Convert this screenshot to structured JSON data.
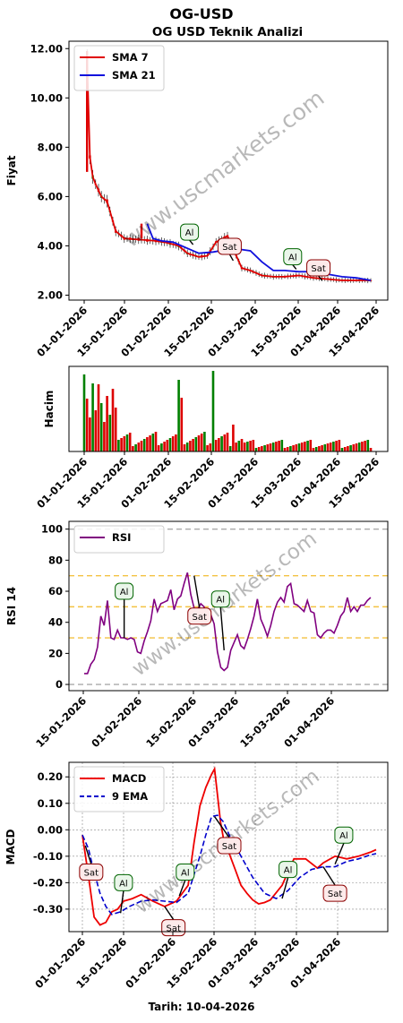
{
  "page": {
    "suptitle": "OG-USD",
    "footer": "Tarih: 10-04-2026",
    "watermark": "www.uscmarkets.com"
  },
  "colors": {
    "sma7": "#e00000",
    "sma21": "#1010dd",
    "candle_up": "#008000",
    "candle_down": "#dd0000",
    "rsi": "#800080",
    "macd": "#ee0000",
    "ema": "#0000cc",
    "buy_text": "#006400",
    "sell_text": "#8b0000"
  },
  "chart_data": [
    {
      "type": "line",
      "id": "price",
      "title": "OG USD Teknik Analizi",
      "ylabel": "Fiyat",
      "ylim": [
        1.8,
        12.3
      ],
      "yticks": [
        "2.00",
        "4.00",
        "6.00",
        "8.00",
        "10.00",
        "12.00"
      ],
      "ytick_values": [
        2,
        4,
        6,
        8,
        10,
        12
      ],
      "xticks": [
        "01-01-2026",
        "15-01-2026",
        "01-02-2026",
        "15-02-2026",
        "01-03-2026",
        "15-03-2026",
        "01-04-2026",
        "15-04-2026"
      ],
      "legend": [
        "SMA 7",
        "SMA 21"
      ],
      "legend_position": "top-left",
      "series": [
        {
          "name": "SMA 7",
          "x": [
            1,
            2,
            3,
            4,
            6,
            8,
            11,
            14,
            20,
            25,
            28,
            33,
            36,
            40,
            43,
            46,
            50,
            55,
            58,
            62,
            66,
            70,
            75,
            80,
            85,
            90,
            95,
            100
          ],
          "values": [
            11.6,
            7.6,
            6.8,
            6.5,
            6.0,
            5.8,
            4.6,
            4.3,
            4.25,
            4.2,
            4.15,
            4.0,
            3.7,
            3.55,
            3.6,
            4.15,
            4.4,
            3.1,
            3.0,
            2.8,
            2.75,
            2.75,
            2.8,
            2.7,
            2.65,
            2.6,
            2.6,
            2.6
          ]
        },
        {
          "name": "SMA 21",
          "x": [
            22,
            24,
            27,
            31,
            36,
            40,
            45,
            50,
            55,
            58,
            62,
            66,
            70,
            75,
            80,
            85,
            90,
            95,
            100
          ],
          "values": [
            4.9,
            4.3,
            4.2,
            4.15,
            3.9,
            3.7,
            3.75,
            3.85,
            3.85,
            3.8,
            3.35,
            3.0,
            3.0,
            2.95,
            2.95,
            2.85,
            2.75,
            2.7,
            2.6
          ]
        }
      ],
      "annotations": [
        {
          "label": "Al",
          "side": "buy",
          "x": 38,
          "y": 4.05
        },
        {
          "label": "Sat",
          "side": "sell",
          "x": 52,
          "y": 3.4
        },
        {
          "label": "Al",
          "side": "buy",
          "x": 74,
          "y": 3.05
        },
        {
          "label": "Sat",
          "side": "sell",
          "x": 83,
          "y": 2.6
        }
      ]
    },
    {
      "type": "bar",
      "id": "volume",
      "ylabel": "Hacim",
      "xticks": [
        "01-01-2026",
        "15-01-2026",
        "01-02-2026",
        "15-02-2026",
        "01-03-2026",
        "15-03-2026",
        "01-04-2026",
        "15-04-2026"
      ]
    },
    {
      "type": "line",
      "id": "rsi",
      "ylabel": "RSI 14",
      "ylim": [
        -4,
        105
      ],
      "yticks": [
        "0",
        "20",
        "40",
        "60",
        "80",
        "100"
      ],
      "ytick_values": [
        0,
        20,
        40,
        60,
        80,
        100
      ],
      "hlines": [
        30,
        50,
        70
      ],
      "hlines_gray": [
        0,
        100
      ],
      "xticks": [
        "15-01-2026",
        "01-02-2026",
        "15-02-2026",
        "01-03-2026",
        "15-03-2026",
        "01-04-2026"
      ],
      "legend": [
        "RSI"
      ],
      "legend_position": "top-left",
      "series": [
        {
          "name": "RSI",
          "x": [
            14,
            15,
            16,
            17,
            18,
            19,
            20,
            21,
            22,
            23,
            24,
            25,
            26,
            27,
            28,
            29,
            30,
            31,
            32,
            33,
            34,
            35,
            36,
            37,
            38,
            39,
            40,
            41,
            42,
            43,
            44,
            45,
            46,
            47,
            48,
            49,
            50,
            51,
            52,
            53,
            54,
            55,
            56,
            57,
            58,
            59,
            60,
            61,
            62,
            63,
            64,
            65,
            66,
            67,
            68,
            69,
            70,
            71,
            72,
            73,
            74,
            75,
            76,
            77,
            78,
            79,
            80,
            81,
            82,
            83,
            84,
            85,
            86,
            87,
            88,
            89,
            90,
            91,
            92,
            93,
            94,
            95,
            96,
            97,
            98,
            99,
            100
          ],
          "values": [
            7,
            7,
            13,
            16,
            24,
            44,
            38,
            54,
            30,
            29,
            35,
            30,
            30,
            29,
            30,
            29,
            21,
            20,
            28,
            34,
            41,
            55,
            47,
            52,
            53,
            54,
            61,
            48,
            55,
            57,
            65,
            72,
            58,
            49,
            48,
            52,
            50,
            40,
            45,
            39,
            21,
            11,
            9,
            11,
            22,
            27,
            32,
            25,
            23,
            29,
            36,
            44,
            55,
            42,
            37,
            31,
            38,
            47,
            53,
            56,
            53,
            63,
            65,
            52,
            51,
            49,
            47,
            54,
            47,
            46,
            32,
            30,
            33,
            35,
            35,
            33,
            38,
            44,
            47,
            56,
            47,
            50,
            47,
            51,
            51,
            54,
            56
          ]
        }
      ],
      "annotations": [
        {
          "label": "Al",
          "side": "buy",
          "x": 26,
          "y": 60
        },
        {
          "label": "Sat",
          "side": "sell",
          "x": 47,
          "y": 44
        },
        {
          "label": "Al",
          "side": "buy",
          "x": 56,
          "y": 55
        }
      ]
    },
    {
      "type": "line",
      "id": "macd",
      "ylabel": "MACD",
      "ylim": [
        -0.385,
        0.255
      ],
      "yticks": [
        "-0.30",
        "-0.20",
        "-0.10",
        "0.00",
        "0.10",
        "0.20"
      ],
      "ytick_values": [
        -0.3,
        -0.2,
        -0.1,
        0.0,
        0.1,
        0.2
      ],
      "xticks": [
        "01-01-2026",
        "15-01-2026",
        "01-02-2026",
        "15-02-2026",
        "01-03-2026",
        "15-03-2026",
        "01-04-2026"
      ],
      "grid": true,
      "legend": [
        "MACD",
        "9 EMA"
      ],
      "legend_position": "top-left",
      "series": [
        {
          "name": "MACD",
          "x": [
            0,
            2,
            4,
            6,
            7,
            8,
            9,
            10,
            12,
            14,
            17,
            20,
            24,
            28,
            32,
            36,
            38,
            40,
            42,
            44,
            45,
            46,
            47,
            48,
            50,
            52,
            54,
            56,
            58,
            60,
            62,
            64,
            68,
            72,
            76,
            80,
            82,
            86,
            90,
            94,
            98,
            100
          ],
          "values": [
            -0.02,
            -0.17,
            -0.33,
            -0.36,
            -0.355,
            -0.35,
            -0.33,
            -0.31,
            -0.3,
            -0.27,
            -0.26,
            -0.245,
            -0.27,
            -0.29,
            -0.27,
            -0.21,
            -0.05,
            0.09,
            0.16,
            0.21,
            0.23,
            0.13,
            0.03,
            -0.03,
            -0.09,
            -0.15,
            -0.21,
            -0.24,
            -0.265,
            -0.28,
            -0.275,
            -0.265,
            -0.21,
            -0.11,
            -0.11,
            -0.145,
            -0.125,
            -0.1,
            -0.11,
            -0.1,
            -0.085,
            -0.075
          ]
        },
        {
          "name": "9 EMA",
          "x": [
            0,
            2,
            4,
            6,
            8,
            10,
            13,
            16,
            20,
            24,
            28,
            32,
            36,
            40,
            42,
            44,
            46,
            48,
            50,
            54,
            58,
            62,
            66,
            70,
            74,
            78,
            82,
            86,
            90,
            94,
            98,
            100
          ],
          "values": [
            -0.02,
            -0.07,
            -0.16,
            -0.24,
            -0.29,
            -0.32,
            -0.31,
            -0.29,
            -0.27,
            -0.265,
            -0.27,
            -0.275,
            -0.24,
            -0.1,
            -0.02,
            0.05,
            0.055,
            0.03,
            -0.02,
            -0.1,
            -0.18,
            -0.24,
            -0.26,
            -0.23,
            -0.18,
            -0.15,
            -0.14,
            -0.14,
            -0.12,
            -0.11,
            -0.095,
            -0.09
          ]
        }
      ],
      "annotations": [
        {
          "label": "Sat",
          "side": "sell",
          "x": 3,
          "y": -0.16
        },
        {
          "label": "Al",
          "side": "buy",
          "x": 14,
          "y": -0.2
        },
        {
          "label": "Sat",
          "side": "sell",
          "x": 31,
          "y": -0.37
        },
        {
          "label": "Al",
          "side": "buy",
          "x": 35,
          "y": -0.16
        },
        {
          "label": "Sat",
          "side": "sell",
          "x": 50,
          "y": -0.06
        },
        {
          "label": "Al",
          "side": "buy",
          "x": 70,
          "y": -0.15
        },
        {
          "label": "Sat",
          "side": "sell",
          "x": 86,
          "y": -0.24
        },
        {
          "label": "Al",
          "side": "buy",
          "x": 89,
          "y": -0.02
        }
      ]
    }
  ]
}
